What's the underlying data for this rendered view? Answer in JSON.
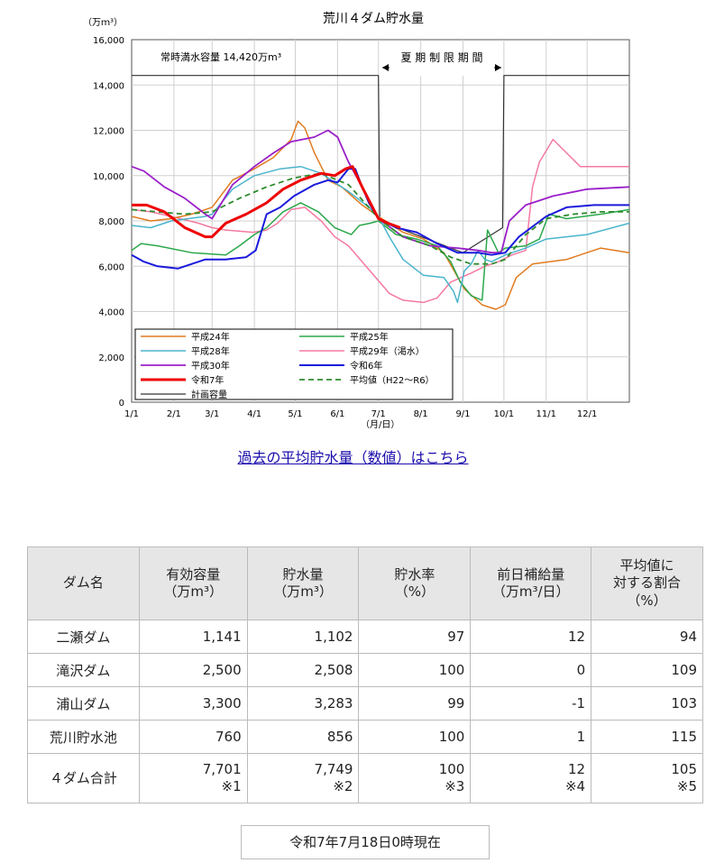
{
  "chart_data": {
    "type": "line",
    "title": "荒川４ダム貯水量",
    "ylabel": "（万ｍ³）",
    "xlabel": "（月/日）",
    "ylim": [
      0,
      16000
    ],
    "yticks": [
      "0",
      "2,000",
      "4,000",
      "6,000",
      "8,000",
      "10,000",
      "12,000",
      "14,000",
      "16,000"
    ],
    "xlim": [
      1,
      366
    ],
    "xticks": [
      {
        "day": 1,
        "label": "1/1"
      },
      {
        "day": 32,
        "label": "2/1"
      },
      {
        "day": 60,
        "label": "3/1"
      },
      {
        "day": 91,
        "label": "4/1"
      },
      {
        "day": 121,
        "label": "5/1"
      },
      {
        "day": 152,
        "label": "6/1"
      },
      {
        "day": 182,
        "label": "7/1"
      },
      {
        "day": 213,
        "label": "8/1"
      },
      {
        "day": 244,
        "label": "9/1"
      },
      {
        "day": 274,
        "label": "10/1"
      },
      {
        "day": 305,
        "label": "11/1"
      },
      {
        "day": 335,
        "label": "12/1"
      }
    ],
    "annotations": {
      "capacity": "常時満水容量 14,420万m³",
      "summer": "夏 期 制 限 期 間"
    },
    "series": [
      {
        "name": "平成24年",
        "color": "#e07b1f",
        "width": 1.5,
        "dash": "",
        "points": [
          [
            1,
            8200
          ],
          [
            15,
            8000
          ],
          [
            30,
            8100
          ],
          [
            45,
            8300
          ],
          [
            60,
            8600
          ],
          [
            75,
            9800
          ],
          [
            91,
            10300
          ],
          [
            105,
            10800
          ],
          [
            118,
            11600
          ],
          [
            123,
            12400
          ],
          [
            128,
            12100
          ],
          [
            135,
            11000
          ],
          [
            145,
            9800
          ],
          [
            155,
            9500
          ],
          [
            170,
            8700
          ],
          [
            182,
            8200
          ],
          [
            200,
            7500
          ],
          [
            215,
            7200
          ],
          [
            230,
            6600
          ],
          [
            245,
            5000
          ],
          [
            258,
            4300
          ],
          [
            268,
            4100
          ],
          [
            275,
            4300
          ],
          [
            283,
            5500
          ],
          [
            295,
            6100
          ],
          [
            320,
            6300
          ],
          [
            345,
            6800
          ],
          [
            366,
            6600
          ]
        ]
      },
      {
        "name": "平成25年",
        "color": "#2aa84a",
        "width": 1.5,
        "dash": "",
        "points": [
          [
            1,
            6700
          ],
          [
            8,
            7000
          ],
          [
            20,
            6900
          ],
          [
            45,
            6600
          ],
          [
            70,
            6500
          ],
          [
            80,
            6900
          ],
          [
            91,
            7400
          ],
          [
            100,
            7700
          ],
          [
            112,
            8400
          ],
          [
            125,
            8800
          ],
          [
            138,
            8400
          ],
          [
            150,
            7700
          ],
          [
            162,
            7400
          ],
          [
            168,
            7800
          ],
          [
            176,
            7900
          ],
          [
            182,
            8000
          ],
          [
            195,
            7400
          ],
          [
            210,
            7200
          ],
          [
            225,
            6900
          ],
          [
            235,
            6200
          ],
          [
            242,
            5300
          ],
          [
            250,
            4700
          ],
          [
            258,
            4500
          ],
          [
            262,
            7600
          ],
          [
            270,
            6600
          ],
          [
            275,
            6800
          ],
          [
            290,
            6900
          ],
          [
            300,
            7200
          ],
          [
            307,
            8300
          ],
          [
            320,
            8100
          ],
          [
            345,
            8300
          ],
          [
            366,
            8500
          ]
        ]
      },
      {
        "name": "平成28年",
        "color": "#4ab4cc",
        "width": 1.5,
        "dash": "",
        "points": [
          [
            1,
            7800
          ],
          [
            15,
            7700
          ],
          [
            30,
            8000
          ],
          [
            55,
            8200
          ],
          [
            60,
            8300
          ],
          [
            75,
            9400
          ],
          [
            91,
            10000
          ],
          [
            110,
            10300
          ],
          [
            125,
            10400
          ],
          [
            140,
            10100
          ],
          [
            150,
            9700
          ],
          [
            160,
            9300
          ],
          [
            175,
            8600
          ],
          [
            182,
            8200
          ],
          [
            190,
            7300
          ],
          [
            200,
            6300
          ],
          [
            215,
            5600
          ],
          [
            230,
            5500
          ],
          [
            237,
            4900
          ],
          [
            240,
            4400
          ],
          [
            245,
            5800
          ],
          [
            250,
            6100
          ],
          [
            255,
            6700
          ],
          [
            260,
            6300
          ],
          [
            265,
            6200
          ],
          [
            275,
            6500
          ],
          [
            290,
            6800
          ],
          [
            305,
            7200
          ],
          [
            335,
            7400
          ],
          [
            366,
            7900
          ]
        ]
      },
      {
        "name": "平成29年（渇水）",
        "color": "#f47aa0",
        "width": 1.5,
        "dash": "",
        "points": [
          [
            1,
            8500
          ],
          [
            15,
            8400
          ],
          [
            30,
            8200
          ],
          [
            50,
            7900
          ],
          [
            60,
            7700
          ],
          [
            70,
            7600
          ],
          [
            90,
            7500
          ],
          [
            100,
            7600
          ],
          [
            108,
            7900
          ],
          [
            118,
            8500
          ],
          [
            128,
            8600
          ],
          [
            140,
            8000
          ],
          [
            150,
            7300
          ],
          [
            160,
            6900
          ],
          [
            170,
            6200
          ],
          [
            180,
            5500
          ],
          [
            190,
            4800
          ],
          [
            200,
            4500
          ],
          [
            215,
            4400
          ],
          [
            225,
            4600
          ],
          [
            235,
            5300
          ],
          [
            250,
            5700
          ],
          [
            260,
            6000
          ],
          [
            270,
            6200
          ],
          [
            280,
            6500
          ],
          [
            290,
            6700
          ],
          [
            295,
            9500
          ],
          [
            300,
            10600
          ],
          [
            310,
            11600
          ],
          [
            320,
            11000
          ],
          [
            330,
            10400
          ],
          [
            366,
            10400
          ]
        ]
      },
      {
        "name": "平成30年",
        "color": "#9b1fc9",
        "width": 1.8,
        "dash": "",
        "points": [
          [
            1,
            10400
          ],
          [
            10,
            10200
          ],
          [
            25,
            9500
          ],
          [
            40,
            9000
          ],
          [
            55,
            8300
          ],
          [
            60,
            8100
          ],
          [
            75,
            9600
          ],
          [
            91,
            10400
          ],
          [
            105,
            11000
          ],
          [
            118,
            11500
          ],
          [
            135,
            11700
          ],
          [
            145,
            12000
          ],
          [
            152,
            11700
          ],
          [
            160,
            10600
          ],
          [
            170,
            9500
          ],
          [
            182,
            8100
          ],
          [
            200,
            7300
          ],
          [
            220,
            6900
          ],
          [
            240,
            6800
          ],
          [
            255,
            6700
          ],
          [
            265,
            6600
          ],
          [
            272,
            6600
          ],
          [
            278,
            8000
          ],
          [
            290,
            8700
          ],
          [
            310,
            9100
          ],
          [
            335,
            9400
          ],
          [
            366,
            9500
          ]
        ]
      },
      {
        "name": "令和6年",
        "color": "#1a1adc",
        "width": 2.0,
        "dash": "",
        "points": [
          [
            1,
            6500
          ],
          [
            10,
            6200
          ],
          [
            20,
            6000
          ],
          [
            35,
            5900
          ],
          [
            55,
            6300
          ],
          [
            70,
            6300
          ],
          [
            85,
            6400
          ],
          [
            92,
            6700
          ],
          [
            100,
            8300
          ],
          [
            110,
            8600
          ],
          [
            120,
            9100
          ],
          [
            135,
            9600
          ],
          [
            145,
            9800
          ],
          [
            152,
            9700
          ],
          [
            160,
            10300
          ],
          [
            165,
            10300
          ],
          [
            170,
            9500
          ],
          [
            175,
            8800
          ],
          [
            182,
            8100
          ],
          [
            195,
            7700
          ],
          [
            210,
            7500
          ],
          [
            225,
            7000
          ],
          [
            240,
            6600
          ],
          [
            255,
            6600
          ],
          [
            265,
            6500
          ],
          [
            275,
            6600
          ],
          [
            285,
            7300
          ],
          [
            305,
            8200
          ],
          [
            320,
            8600
          ],
          [
            340,
            8700
          ],
          [
            366,
            8700
          ]
        ]
      },
      {
        "name": "令和7年",
        "color": "#ee0000",
        "width": 3.0,
        "dash": "",
        "points": [
          [
            1,
            8700
          ],
          [
            12,
            8700
          ],
          [
            25,
            8400
          ],
          [
            40,
            7700
          ],
          [
            55,
            7300
          ],
          [
            60,
            7300
          ],
          [
            70,
            7900
          ],
          [
            85,
            8300
          ],
          [
            100,
            8800
          ],
          [
            112,
            9400
          ],
          [
            125,
            9800
          ],
          [
            140,
            10100
          ],
          [
            150,
            10000
          ],
          [
            158,
            10300
          ],
          [
            163,
            10400
          ],
          [
            170,
            9500
          ],
          [
            176,
            8800
          ],
          [
            182,
            8100
          ],
          [
            189,
            7900
          ],
          [
            198,
            7700
          ]
        ]
      },
      {
        "name": "平均値（H22～R6）",
        "color": "#2e8b2e",
        "width": 1.8,
        "dash": "6,4",
        "points": [
          [
            1,
            8500
          ],
          [
            20,
            8400
          ],
          [
            40,
            8300
          ],
          [
            60,
            8400
          ],
          [
            80,
            9000
          ],
          [
            100,
            9500
          ],
          [
            120,
            9900
          ],
          [
            140,
            10100
          ],
          [
            160,
            9600
          ],
          [
            175,
            8600
          ],
          [
            182,
            8100
          ],
          [
            200,
            7300
          ],
          [
            220,
            6900
          ],
          [
            235,
            6400
          ],
          [
            250,
            6100
          ],
          [
            265,
            6100
          ],
          [
            275,
            6300
          ],
          [
            290,
            7400
          ],
          [
            305,
            8100
          ],
          [
            325,
            8300
          ],
          [
            345,
            8400
          ],
          [
            366,
            8400
          ]
        ]
      },
      {
        "name": "計画容量",
        "color": "#333333",
        "width": 1.2,
        "dash": "",
        "points": [
          [
            1,
            14420
          ],
          [
            182,
            14420
          ],
          [
            183,
            8000
          ],
          [
            244,
            6600
          ],
          [
            273,
            7700
          ],
          [
            274,
            14420
          ],
          [
            366,
            14420
          ]
        ]
      }
    ]
  },
  "link_text": "過去の平均貯水量（数値）はこちら",
  "table": {
    "headers": [
      [
        "ダム名"
      ],
      [
        "有効容量",
        "（万m³）"
      ],
      [
        "貯水量",
        "（万m³）"
      ],
      [
        "貯水率",
        "（%）"
      ],
      [
        "前日補給量",
        "（万m³/日）"
      ],
      [
        "平均値に",
        "対する割合",
        "（%）"
      ]
    ],
    "rows": [
      [
        "二瀬ダム",
        "1,141",
        "1,102",
        "97",
        "12",
        "94"
      ],
      [
        "滝沢ダム",
        "2,500",
        "2,508",
        "100",
        "0",
        "109"
      ],
      [
        "浦山ダム",
        "3,300",
        "3,283",
        "99",
        "-1",
        "103"
      ],
      [
        "荒川貯水池",
        "760",
        "856",
        "100",
        "1",
        "115"
      ]
    ],
    "total": {
      "name": "４ダム合計",
      "cells": [
        [
          "7,701",
          "※1"
        ],
        [
          "7,749",
          "※2"
        ],
        [
          "100",
          "※3"
        ],
        [
          "12",
          "※4"
        ],
        [
          "105",
          "※5"
        ]
      ]
    }
  },
  "timestamp": "令和7年7月18日0時現在"
}
